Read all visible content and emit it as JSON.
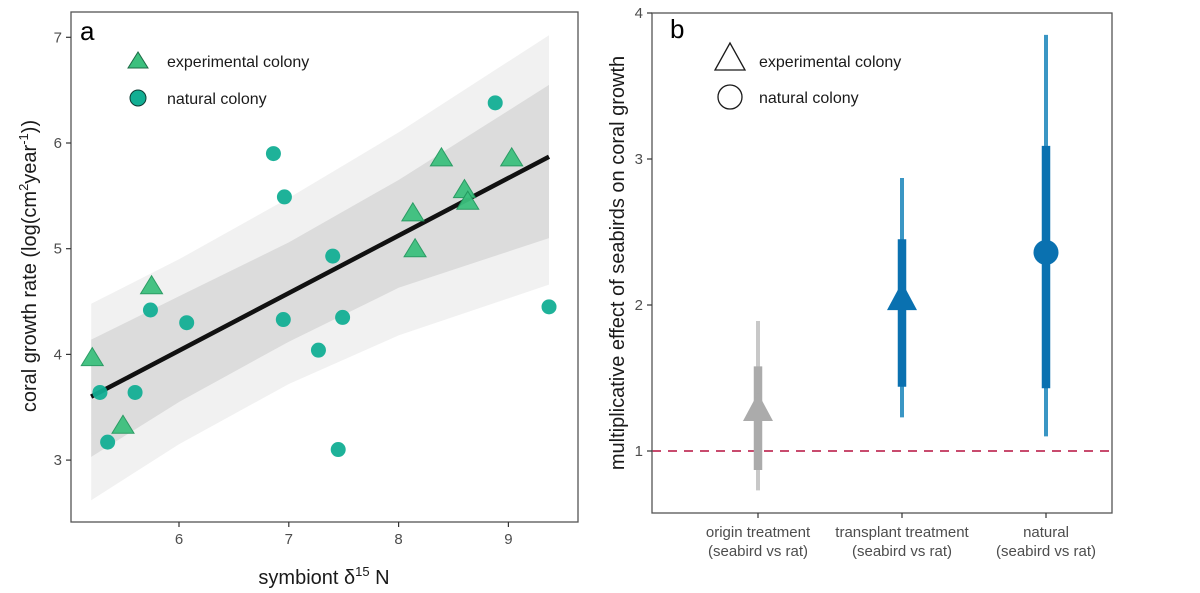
{
  "chart_data": [
    {
      "panel": "a",
      "type": "scatter",
      "title": "",
      "xlabel": "symbiont δ15 N",
      "xlabel_parts": {
        "main": "symbiont δ",
        "sup": "15",
        "tail": " N"
      },
      "ylabel": "coral growth rate (log(cm2year-1))",
      "ylabel_parts": {
        "a": "coral growth rate (log(cm",
        "sup1": "2",
        "b": "year",
        "sup2": "-1",
        "c": "))"
      },
      "xlim": [
        4.98,
        9.6
      ],
      "ylim": [
        2.4,
        7.25
      ],
      "xticks": [
        6,
        7,
        8,
        9
      ],
      "yticks": [
        3,
        4,
        5,
        6,
        7
      ],
      "grid": false,
      "legend": {
        "position": "top-left",
        "entries": [
          {
            "label": "experimental colony",
            "shape": "triangle"
          },
          {
            "label": "natural colony",
            "shape": "circle"
          }
        ]
      },
      "colors": {
        "experimental": "#3CC07E",
        "natural": "#12AE93",
        "fit_line": "#111111",
        "band_inner": "#dcdcdc",
        "band_outer": "#f1f1f1"
      },
      "series": [
        {
          "name": "experimental colony",
          "shape": "triangle",
          "points": [
            {
              "x": 5.21,
              "y": 3.96
            },
            {
              "x": 5.49,
              "y": 3.32
            },
            {
              "x": 5.75,
              "y": 4.64
            },
            {
              "x": 8.13,
              "y": 5.33
            },
            {
              "x": 8.15,
              "y": 4.99
            },
            {
              "x": 8.39,
              "y": 5.85
            },
            {
              "x": 8.6,
              "y": 5.55
            },
            {
              "x": 8.63,
              "y": 5.44
            },
            {
              "x": 9.03,
              "y": 5.85
            }
          ]
        },
        {
          "name": "natural colony",
          "shape": "circle",
          "points": [
            {
              "x": 5.28,
              "y": 3.64
            },
            {
              "x": 5.35,
              "y": 3.17
            },
            {
              "x": 5.6,
              "y": 3.64
            },
            {
              "x": 5.74,
              "y": 4.42
            },
            {
              "x": 6.07,
              "y": 4.3
            },
            {
              "x": 6.86,
              "y": 5.9
            },
            {
              "x": 6.96,
              "y": 5.49
            },
            {
              "x": 6.95,
              "y": 4.33
            },
            {
              "x": 7.27,
              "y": 4.04
            },
            {
              "x": 7.4,
              "y": 4.93
            },
            {
              "x": 7.45,
              "y": 3.1
            },
            {
              "x": 7.49,
              "y": 4.35
            },
            {
              "x": 8.88,
              "y": 6.38
            },
            {
              "x": 9.37,
              "y": 4.45
            }
          ]
        }
      ],
      "fit": {
        "x": [
          5.2,
          9.37
        ],
        "y": [
          3.6,
          5.87
        ],
        "band_x": [
          5.2,
          6.0,
          7.0,
          8.0,
          9.37
        ],
        "inner_upper": [
          4.14,
          4.55,
          5.06,
          5.65,
          6.55
        ],
        "inner_lower": [
          3.03,
          3.55,
          4.12,
          4.63,
          5.1
        ],
        "outer_upper": [
          4.48,
          4.9,
          5.48,
          6.1,
          7.02
        ],
        "outer_lower": [
          2.62,
          3.15,
          3.72,
          4.18,
          4.66
        ]
      }
    },
    {
      "panel": "b",
      "type": "pointrange",
      "title": "",
      "xlabel": "",
      "ylabel": "multiplicative effect of seabirds on coral growth",
      "ylim": [
        0.58,
        4.0
      ],
      "yticks": [
        1,
        2,
        3,
        4
      ],
      "grid": false,
      "reference_line": {
        "y": 1,
        "style": "dashed",
        "color": "#C0325A"
      },
      "legend": {
        "position": "top-left",
        "entries": [
          {
            "label": "experimental colony",
            "shape": "triangle"
          },
          {
            "label": "natural colony",
            "shape": "circle"
          }
        ]
      },
      "categories": [
        {
          "line1": "origin treatment",
          "line2": "(seabird vs rat)"
        },
        {
          "line1": "transplant treatment",
          "line2": "(seabird vs rat)"
        },
        {
          "line1": "natural",
          "line2": "(seabird vs rat)"
        }
      ],
      "series": [
        {
          "category": "origin treatment (seabird vs rat)",
          "shape": "triangle",
          "estimate": 1.26,
          "inner": [
            0.87,
            1.58
          ],
          "outer": [
            0.73,
            1.89
          ],
          "color": "#ABABAB",
          "outer_color": "#C8C8C8"
        },
        {
          "category": "transplant treatment (seabird vs rat)",
          "shape": "triangle",
          "estimate": 2.02,
          "inner": [
            1.44,
            2.45
          ],
          "outer": [
            1.23,
            2.87
          ],
          "color": "#0A71B0",
          "outer_color": "#3A96C4"
        },
        {
          "category": "natural (seabird vs rat)",
          "shape": "circle",
          "estimate": 2.36,
          "inner": [
            1.43,
            3.09
          ],
          "outer": [
            1.1,
            3.85
          ],
          "color": "#0A71B0",
          "outer_color": "#3A96C4"
        }
      ]
    }
  ],
  "panel_labels": {
    "a": "a",
    "b": "b"
  }
}
